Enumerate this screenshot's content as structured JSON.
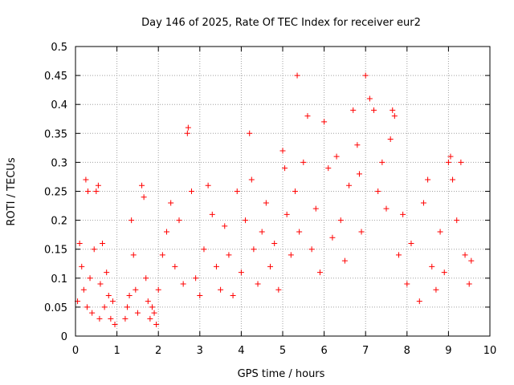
{
  "chart_data": {
    "type": "scatter",
    "title": "Day 146 of 2025, Rate Of TEC Index for receiver eur2",
    "xlabel": "GPS time / hours",
    "ylabel": "ROTI / TECUs",
    "xlim": [
      0,
      10
    ],
    "ylim": [
      0,
      0.5
    ],
    "xticks": [
      "0",
      "1",
      "2",
      "3",
      "4",
      "5",
      "6",
      "7",
      "8",
      "9",
      "10"
    ],
    "yticks": [
      "0",
      "0.05",
      "0.1",
      "0.15",
      "0.2",
      "0.25",
      "0.3",
      "0.35",
      "0.4",
      "0.45",
      "0.5"
    ],
    "grid": true,
    "marker": "+",
    "series": [
      {
        "color": "#ff0000",
        "x": [
          0.05,
          0.1,
          0.15,
          0.2,
          0.25,
          0.28,
          0.3,
          0.35,
          0.4,
          0.45,
          0.5,
          0.55,
          0.58,
          0.6,
          0.65,
          0.7,
          0.75,
          0.8,
          0.85,
          0.9,
          0.95,
          1.2,
          1.25,
          1.3,
          1.35,
          1.4,
          1.45,
          1.5,
          1.6,
          1.65,
          1.7,
          1.75,
          1.8,
          1.85,
          1.9,
          1.95,
          2.0,
          2.1,
          2.2,
          2.3,
          2.4,
          2.5,
          2.6,
          2.7,
          2.72,
          2.8,
          2.9,
          3.0,
          3.1,
          3.2,
          3.3,
          3.4,
          3.5,
          3.6,
          3.7,
          3.8,
          3.9,
          4.0,
          4.1,
          4.2,
          4.25,
          4.3,
          4.4,
          4.5,
          4.6,
          4.7,
          4.8,
          4.9,
          5.0,
          5.05,
          5.1,
          5.2,
          5.3,
          5.35,
          5.4,
          5.5,
          5.6,
          5.7,
          5.8,
          5.9,
          6.0,
          6.1,
          6.2,
          6.3,
          6.4,
          6.5,
          6.6,
          6.7,
          6.8,
          6.85,
          6.9,
          7.0,
          7.1,
          7.2,
          7.3,
          7.4,
          7.5,
          7.6,
          7.65,
          7.7,
          7.8,
          7.9,
          8.0,
          8.1,
          8.3,
          8.4,
          8.5,
          8.6,
          8.7,
          8.8,
          8.9,
          9.0,
          9.05,
          9.1,
          9.2,
          9.3,
          9.4,
          9.5,
          9.55
        ],
        "y": [
          0.06,
          0.16,
          0.12,
          0.08,
          0.27,
          0.05,
          0.25,
          0.1,
          0.04,
          0.15,
          0.25,
          0.26,
          0.03,
          0.09,
          0.16,
          0.05,
          0.11,
          0.07,
          0.03,
          0.06,
          0.02,
          0.03,
          0.05,
          0.07,
          0.2,
          0.14,
          0.08,
          0.04,
          0.26,
          0.24,
          0.1,
          0.06,
          0.03,
          0.05,
          0.04,
          0.02,
          0.08,
          0.14,
          0.18,
          0.23,
          0.12,
          0.2,
          0.09,
          0.35,
          0.36,
          0.25,
          0.1,
          0.07,
          0.15,
          0.26,
          0.21,
          0.12,
          0.08,
          0.19,
          0.14,
          0.07,
          0.25,
          0.11,
          0.2,
          0.35,
          0.27,
          0.15,
          0.09,
          0.18,
          0.23,
          0.12,
          0.16,
          0.08,
          0.32,
          0.29,
          0.21,
          0.14,
          0.25,
          0.45,
          0.18,
          0.3,
          0.38,
          0.15,
          0.22,
          0.11,
          0.37,
          0.29,
          0.17,
          0.31,
          0.2,
          0.13,
          0.26,
          0.39,
          0.33,
          0.28,
          0.18,
          0.45,
          0.41,
          0.39,
          0.25,
          0.3,
          0.22,
          0.34,
          0.39,
          0.38,
          0.14,
          0.21,
          0.09,
          0.16,
          0.06,
          0.23,
          0.27,
          0.12,
          0.08,
          0.18,
          0.11,
          0.3,
          0.31,
          0.27,
          0.2,
          0.3,
          0.14,
          0.09,
          0.13
        ]
      }
    ]
  }
}
